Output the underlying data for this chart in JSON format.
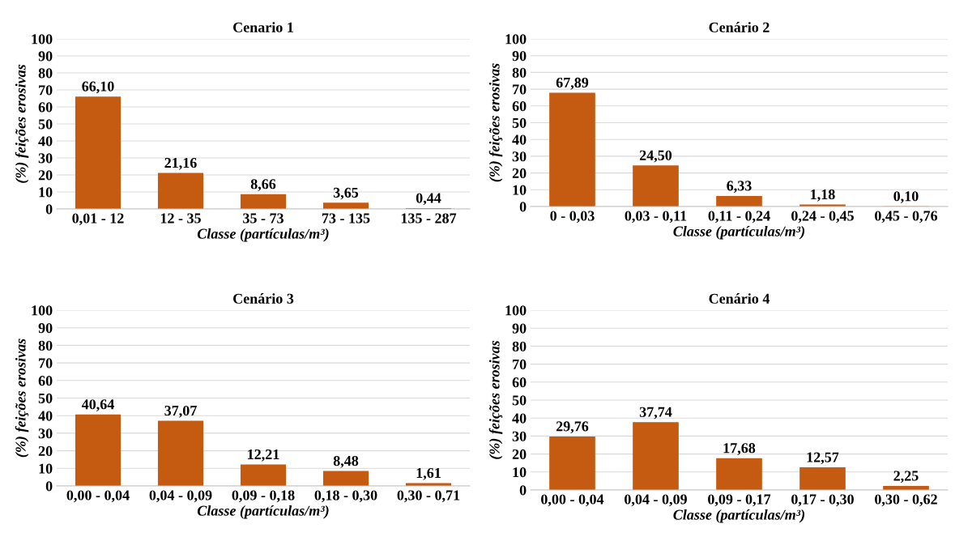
{
  "chart_data": [
    {
      "type": "bar",
      "title": "Cenario 1",
      "xlabel": "Classe (partículas/m³)",
      "ylabel": "(%) feições erosivas",
      "categories": [
        "0,01 - 12",
        "12 - 35",
        "35 - 73",
        "73 - 135",
        "135 - 287"
      ],
      "values": [
        66.1,
        21.16,
        8.66,
        3.65,
        0.44
      ],
      "value_labels": [
        "66,10",
        "21,16",
        "8,66",
        "3,65",
        "0,44"
      ],
      "color": "#c55a11",
      "ylim": [
        0,
        100
      ],
      "yticks": [
        0,
        10,
        20,
        30,
        40,
        50,
        60,
        70,
        80,
        90,
        100
      ],
      "grid": "y",
      "legend": false
    },
    {
      "type": "bar",
      "title": "Cenário 2",
      "xlabel": "Classe (partículas/m³)",
      "ylabel": "(%) feições erosivas",
      "categories": [
        "0 - 0,03",
        "0,03 - 0,11",
        "0,11 - 0,24",
        "0,24 - 0,45",
        "0,45 - 0,76"
      ],
      "values": [
        67.89,
        24.5,
        6.33,
        1.18,
        0.1
      ],
      "value_labels": [
        "67,89",
        "24,50",
        "6,33",
        "1,18",
        "0,10"
      ],
      "color": "#c55a11",
      "ylim": [
        0,
        100
      ],
      "yticks": [
        0,
        10,
        20,
        30,
        40,
        50,
        60,
        70,
        80,
        90,
        100
      ],
      "grid": "y",
      "legend": false
    },
    {
      "type": "bar",
      "title": "Cenário 3",
      "xlabel": "Classe (partículas/m³)",
      "ylabel": "(%) feições erosivas",
      "categories": [
        "0,00 - 0,04",
        "0,04 - 0,09",
        "0,09 - 0,18",
        "0,18 - 0,30",
        "0,30 - 0,71"
      ],
      "values": [
        40.64,
        37.07,
        12.21,
        8.48,
        1.61
      ],
      "value_labels": [
        "40,64",
        "37,07",
        "12,21",
        "8,48",
        "1,61"
      ],
      "color": "#c55a11",
      "ylim": [
        0,
        100
      ],
      "yticks": [
        0,
        10,
        20,
        30,
        40,
        50,
        60,
        70,
        80,
        90,
        100
      ],
      "grid": "y",
      "legend": false
    },
    {
      "type": "bar",
      "title": "Cenário 4",
      "xlabel": "Classe (partículas/m³)",
      "ylabel": "(%) feições erosivas",
      "categories": [
        "0,00 - 0,04",
        "0,04 - 0,09",
        "0,09 - 0,17",
        "0,17 - 0,30",
        "0,30 - 0,62"
      ],
      "values": [
        29.76,
        37.74,
        17.68,
        12.57,
        2.25
      ],
      "value_labels": [
        "29,76",
        "37,74",
        "17,68",
        "12,57",
        "2,25"
      ],
      "color": "#c55a11",
      "ylim": [
        0,
        100
      ],
      "yticks": [
        0,
        10,
        20,
        30,
        40,
        50,
        60,
        70,
        80,
        90,
        100
      ],
      "grid": "y",
      "legend": false
    }
  ]
}
